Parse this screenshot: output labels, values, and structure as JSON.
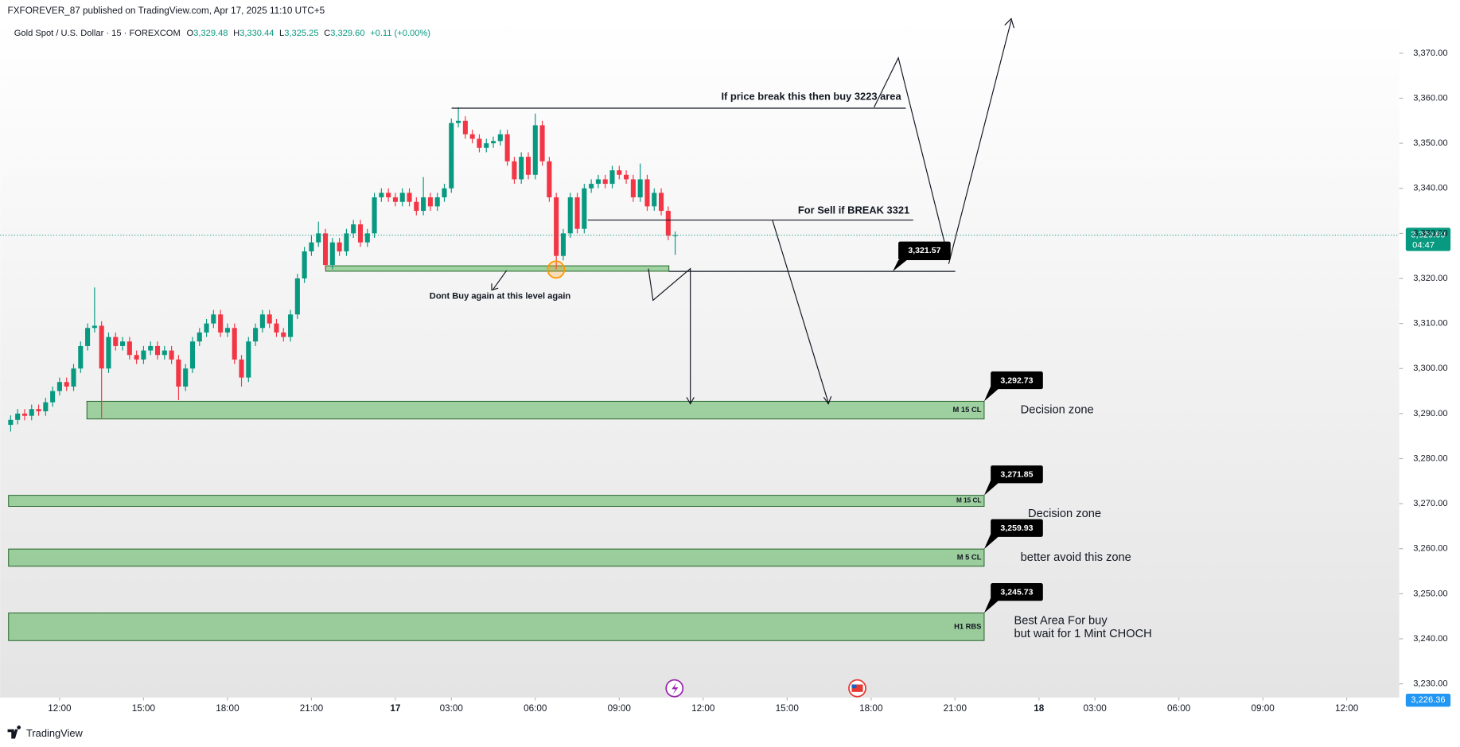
{
  "header": {
    "byline": "FXFOREVER_87 published on TradingView.com, Apr 17, 2025 11:10 UTC+5",
    "symbol": "Gold Spot / U.S. Dollar · 15 · FOREXCOM",
    "legend": [
      {
        "key": "O",
        "value": "3,329.48"
      },
      {
        "key": "H",
        "value": "3,330.44"
      },
      {
        "key": "L",
        "value": "3,325.25"
      },
      {
        "key": "C",
        "value": "3,329.60"
      }
    ],
    "change": "+0.11 (+0.00%)"
  },
  "footer": {
    "brand": "TradingView"
  },
  "chart_data": {
    "type": "candlestick",
    "up_color": "#089981",
    "down_color": "#f23645",
    "xlim": [
      -1.5,
      198.5
    ],
    "ylim": [
      3226,
      3378
    ],
    "xticks": [
      {
        "value": 7,
        "label": "12:00"
      },
      {
        "value": 19,
        "label": "15:00"
      },
      {
        "value": 31,
        "label": "18:00"
      },
      {
        "value": 43,
        "label": "21:00"
      },
      {
        "value": 55,
        "label": "17"
      },
      {
        "value": 63,
        "label": "03:00"
      },
      {
        "value": 75,
        "label": "06:00"
      },
      {
        "value": 87,
        "label": "09:00"
      },
      {
        "value": 99,
        "label": "12:00"
      },
      {
        "value": 111,
        "label": "15:00"
      },
      {
        "value": 123,
        "label": "18:00"
      },
      {
        "value": 135,
        "label": "21:00"
      },
      {
        "value": 147,
        "label": "18"
      },
      {
        "value": 155,
        "label": "03:00"
      },
      {
        "value": 167,
        "label": "06:00"
      },
      {
        "value": 179,
        "label": "09:00"
      },
      {
        "value": 191,
        "label": "12:00"
      }
    ],
    "yticks": [
      {
        "value": 3230,
        "label": "3,230.00"
      },
      {
        "value": 3240,
        "label": "3,240.00"
      },
      {
        "value": 3250,
        "label": "3,250.00"
      },
      {
        "value": 3260,
        "label": "3,260.00"
      },
      {
        "value": 3270,
        "label": "3,270.00"
      },
      {
        "value": 3280,
        "label": "3,280.00"
      },
      {
        "value": 3290,
        "label": "3,290.00"
      },
      {
        "value": 3300,
        "label": "3,300.00"
      },
      {
        "value": 3310,
        "label": "3,310.00"
      },
      {
        "value": 3320,
        "label": "3,320.00"
      },
      {
        "value": 3330,
        "label": "3,330.00"
      },
      {
        "value": 3340,
        "label": "3,340.00"
      },
      {
        "value": 3350,
        "label": "3,350.00"
      },
      {
        "value": 3360,
        "label": "3,360.00"
      },
      {
        "value": 3370,
        "label": "3,370.00"
      }
    ],
    "open": [
      3287.5,
      3288.6,
      3290,
      3289.5,
      3291,
      3290.5,
      3292.5,
      3295,
      3297,
      3296,
      3300,
      3305,
      3309,
      3309.5,
      3300,
      3307,
      3305,
      3306,
      3303,
      3302,
      3304,
      3305,
      3303,
      3304,
      3302,
      3296,
      3300,
      3306,
      3308,
      3310,
      3312,
      3308,
      3309,
      3302,
      3298,
      3306,
      3309,
      3312,
      3310,
      3308,
      3307,
      3312,
      3320,
      3326,
      3328,
      3330,
      3323,
      3328,
      3326,
      3330,
      3332,
      3328,
      3330,
      3338,
      3339,
      3338,
      3337,
      3339,
      3337,
      3335,
      3338,
      3336,
      3338,
      3340,
      3354.5,
      3355,
      3352,
      3351,
      3349,
      3350,
      3350.5,
      3352,
      3346,
      3342,
      3347,
      3343,
      3354,
      3346,
      3338,
      3325,
      3330,
      3338,
      3331,
      3340,
      3341,
      3342,
      3341,
      3344,
      3343,
      3342,
      3338,
      3342,
      3336,
      3339,
      3335,
      3329.48
    ],
    "high": [
      3289.6,
      3291,
      3291,
      3292,
      3292,
      3293.5,
      3296,
      3298,
      3298,
      3301,
      3306,
      3310,
      3318,
      3310.5,
      3308,
      3308,
      3307,
      3307,
      3304,
      3305,
      3306,
      3306,
      3305,
      3305,
      3303,
      3301,
      3307,
      3309,
      3311,
      3313,
      3313,
      3310,
      3310,
      3303,
      3307,
      3310,
      3313,
      3313,
      3311,
      3309,
      3313,
      3321,
      3327,
      3329.5,
      3332.6,
      3331,
      3329,
      3329,
      3331,
      3333,
      3333,
      3331,
      3339,
      3340,
      3340,
      3339,
      3340,
      3340,
      3338,
      3342.5,
      3339,
      3339,
      3341,
      3355.5,
      3358,
      3356,
      3353,
      3352,
      3351,
      3351.5,
      3353,
      3353,
      3347,
      3348,
      3348,
      3356.6,
      3355,
      3347,
      3339,
      3331,
      3339,
      3339,
      3341,
      3342,
      3343,
      3343,
      3345,
      3345,
      3344,
      3343,
      3345.5,
      3343,
      3340,
      3340,
      3336,
      3330.44
    ],
    "low": [
      3286,
      3287.6,
      3288.5,
      3288.5,
      3289.5,
      3289.5,
      3291.5,
      3294,
      3295,
      3295,
      3299,
      3304,
      3308,
      3289,
      3299,
      3304,
      3304,
      3302,
      3301,
      3301,
      3303,
      3302,
      3302,
      3301,
      3293,
      3295,
      3299,
      3305,
      3307,
      3309,
      3307,
      3307,
      3301,
      3296,
      3297,
      3305,
      3308,
      3309,
      3307,
      3306,
      3306,
      3311,
      3319,
      3325,
      3327,
      3322,
      3322,
      3325,
      3325,
      3329,
      3327,
      3327,
      3329,
      3337,
      3337,
      3336,
      3336,
      3336,
      3334,
      3334,
      3335,
      3335,
      3337,
      3339,
      3353.5,
      3351,
      3350,
      3348,
      3348,
      3349,
      3349.5,
      3345,
      3341,
      3341,
      3342,
      3342,
      3345,
      3337,
      3322,
      3324,
      3329,
      3330,
      3330,
      3339,
      3340,
      3340,
      3340,
      3342,
      3341,
      3337,
      3337,
      3335,
      3335,
      3334,
      3328.5,
      3325.25
    ],
    "close": [
      3288.6,
      3290,
      3289.5,
      3291,
      3290.5,
      3292.5,
      3295,
      3297,
      3296,
      3300,
      3305,
      3309,
      3309.5,
      3300,
      3307,
      3305,
      3306,
      3303,
      3302,
      3304,
      3305,
      3303,
      3304,
      3302,
      3296,
      3300,
      3306,
      3308,
      3310,
      3312,
      3308,
      3309,
      3302,
      3298,
      3306,
      3309,
      3312,
      3310,
      3308,
      3307,
      3312,
      3320,
      3326,
      3328,
      3330,
      3323,
      3328,
      3326,
      3330,
      3332,
      3328,
      3330,
      3338,
      3339,
      3338,
      3337,
      3339,
      3337,
      3335,
      3338,
      3336,
      3338,
      3340,
      3354.5,
      3355,
      3352,
      3351,
      3349,
      3350,
      3350.5,
      3352,
      3346,
      3342,
      3347,
      3343,
      3354,
      3346,
      3338,
      3325,
      3330,
      3338,
      3331,
      3340,
      3341,
      3342,
      3341,
      3344,
      3343,
      3342,
      3338,
      3342,
      3336,
      3339,
      3335,
      3329.48,
      3329.6
    ],
    "zones": [
      {
        "top": 3292.73,
        "top_label": "3,292.73",
        "bottom": 3288.8,
        "label": "M 15 CL",
        "note": [
          "Decision zone"
        ]
      },
      {
        "top": 3271.85,
        "top_label": "3,271.85",
        "bottom": 3269.4,
        "label": "M 15 CL",
        "note": [
          "Decision zone"
        ]
      },
      {
        "top": 3259.93,
        "top_label": "3,259.93",
        "bottom": 3256.1,
        "label": "M 5 CL",
        "note": [
          "better avoid this zone"
        ]
      },
      {
        "top": 3245.73,
        "top_label": "3,245.73",
        "bottom": 3239.6,
        "label": "H1 RBS",
        "note": [
          "Best Area For buy",
          "but wait for 1 Mint CHOCH"
        ]
      },
      {
        "top": 3322.8,
        "bottom": 3321.6
      }
    ],
    "level_callout": {
      "value": 3321.57,
      "label": "3,321.57"
    },
    "last_price": {
      "value": 3329.6,
      "label": "3,329.60",
      "countdown": "04:47"
    },
    "low_price": {
      "value": 3226.36,
      "label": "3,226.36"
    },
    "annotations": [
      "If price break this then buy 3223 area",
      "For Sell if BREAK 3321",
      "Dont Buy again at this level again"
    ]
  }
}
